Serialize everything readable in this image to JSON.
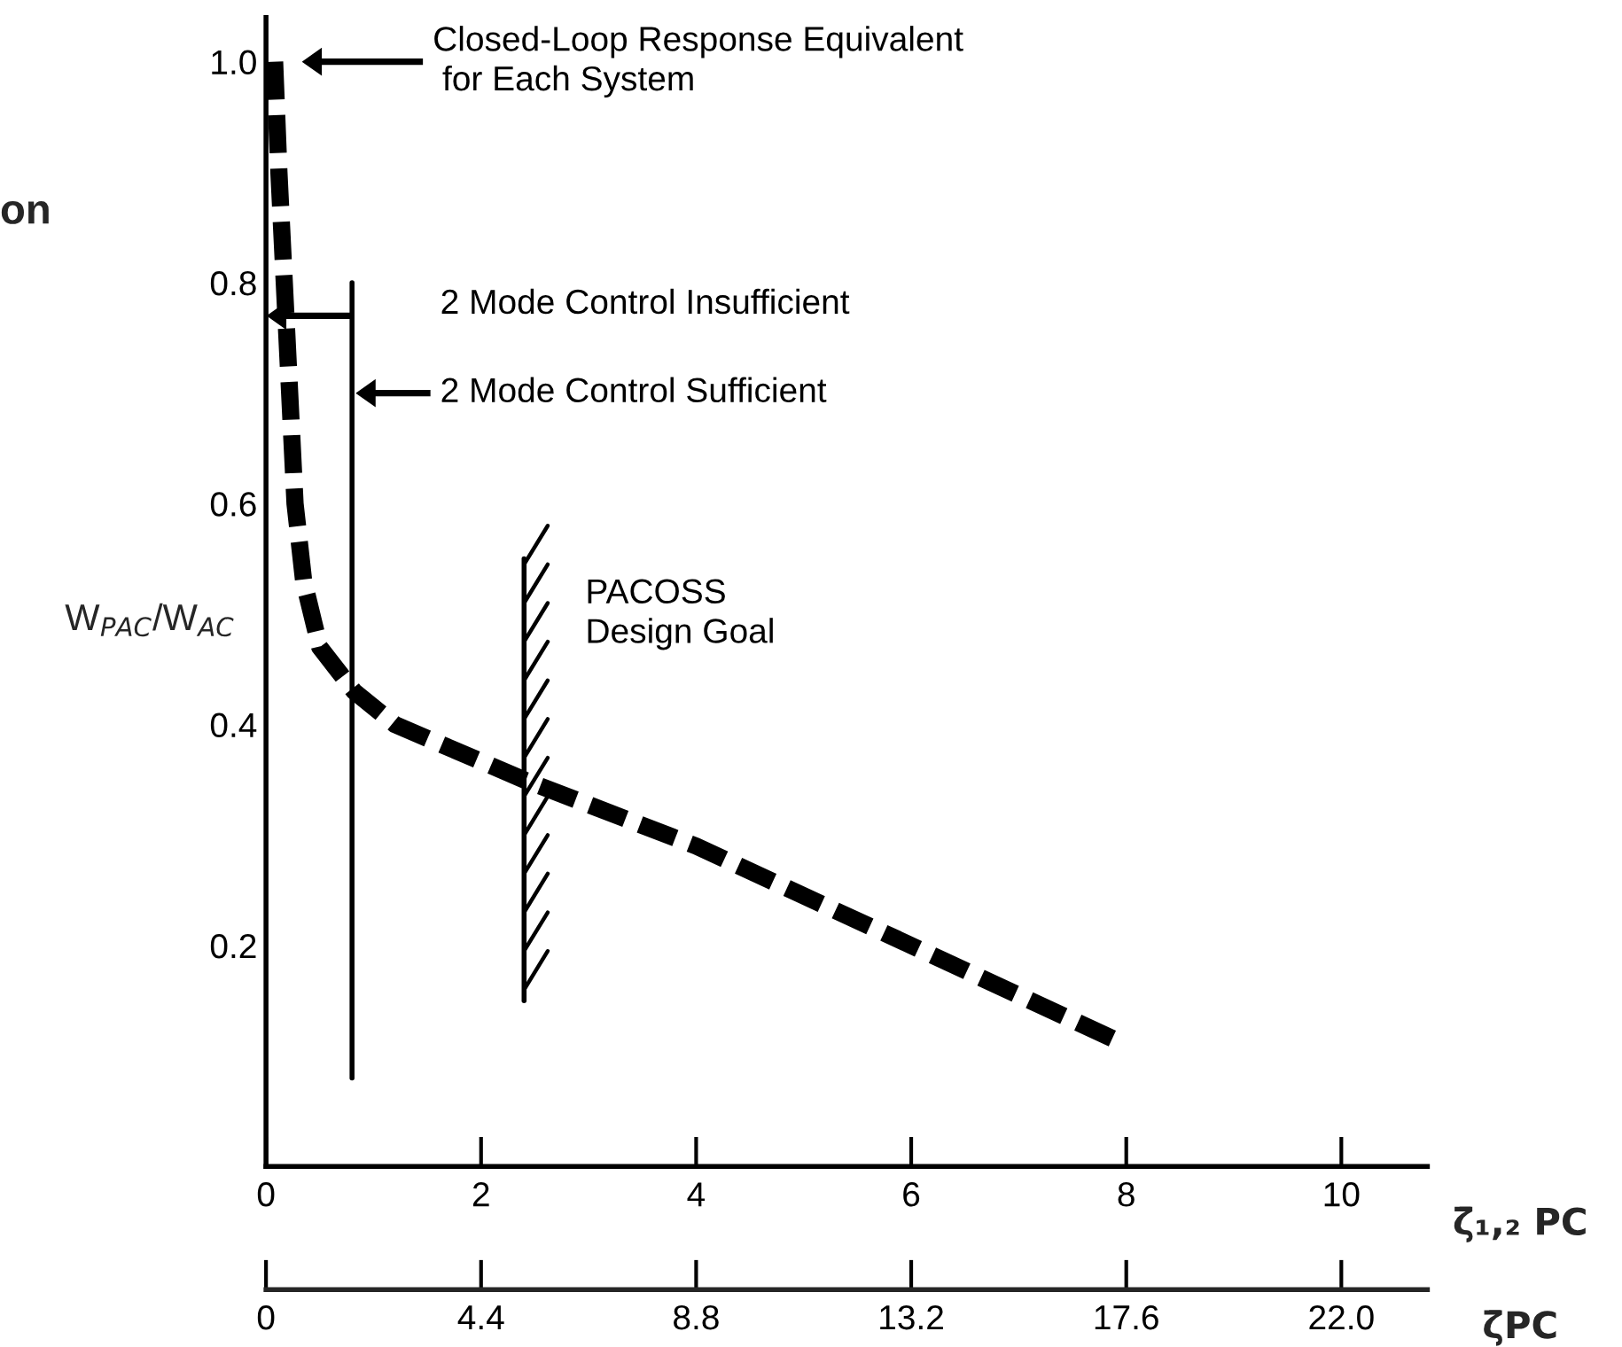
{
  "chart_data": {
    "type": "line",
    "title": "on",
    "ylabel": "W$_{PAC}$/W$_{AC}$",
    "xlabel": "ζ̄₁,₂ PC",
    "x2label": "ζ̄PC",
    "series": [
      {
        "color": "#000000",
        "line_style": "dashed",
        "marker": "none",
        "x": [
          0.08,
          0.12,
          0.17,
          0.22,
          0.27,
          0.35,
          0.5,
          0.82,
          1.2,
          2.4,
          4,
          6,
          8
        ],
        "values": [
          1.0,
          0.9,
          0.8,
          0.7,
          0.6,
          0.53,
          0.47,
          0.43,
          0.4,
          0.35,
          0.29,
          0.2,
          0.11
        ]
      }
    ],
    "xlim": [
      0,
      10.8
    ],
    "xticks": [
      0,
      2,
      4,
      6,
      8,
      10
    ],
    "x2lim": [
      0,
      23.76
    ],
    "x2ticks": [
      0,
      4.4,
      8.8,
      13.2,
      17.6,
      {
        "value": 22.0,
        "label": "22.0"
      }
    ],
    "ylim": [
      0,
      1.04
    ],
    "yticks": [
      0.2,
      0.4,
      0.6,
      0.8,
      {
        "value": 1.0,
        "label": "1.0"
      }
    ],
    "ref_lines": [
      {
        "axis": "x",
        "value": 0.8,
        "color": "#000000",
        "line_style": "solid"
      },
      {
        "axis": "x",
        "value": 2.4,
        "color": "#000000",
        "line_style": "solid"
      }
    ],
    "annotations": [
      "Closed-Loop Response Equivalent\n for Each System",
      "2 Mode Control Insufficient",
      "2 Mode Control Sufficient",
      "PACOSS\nDesign Goal"
    ],
    "grid": false,
    "legend": false
  }
}
